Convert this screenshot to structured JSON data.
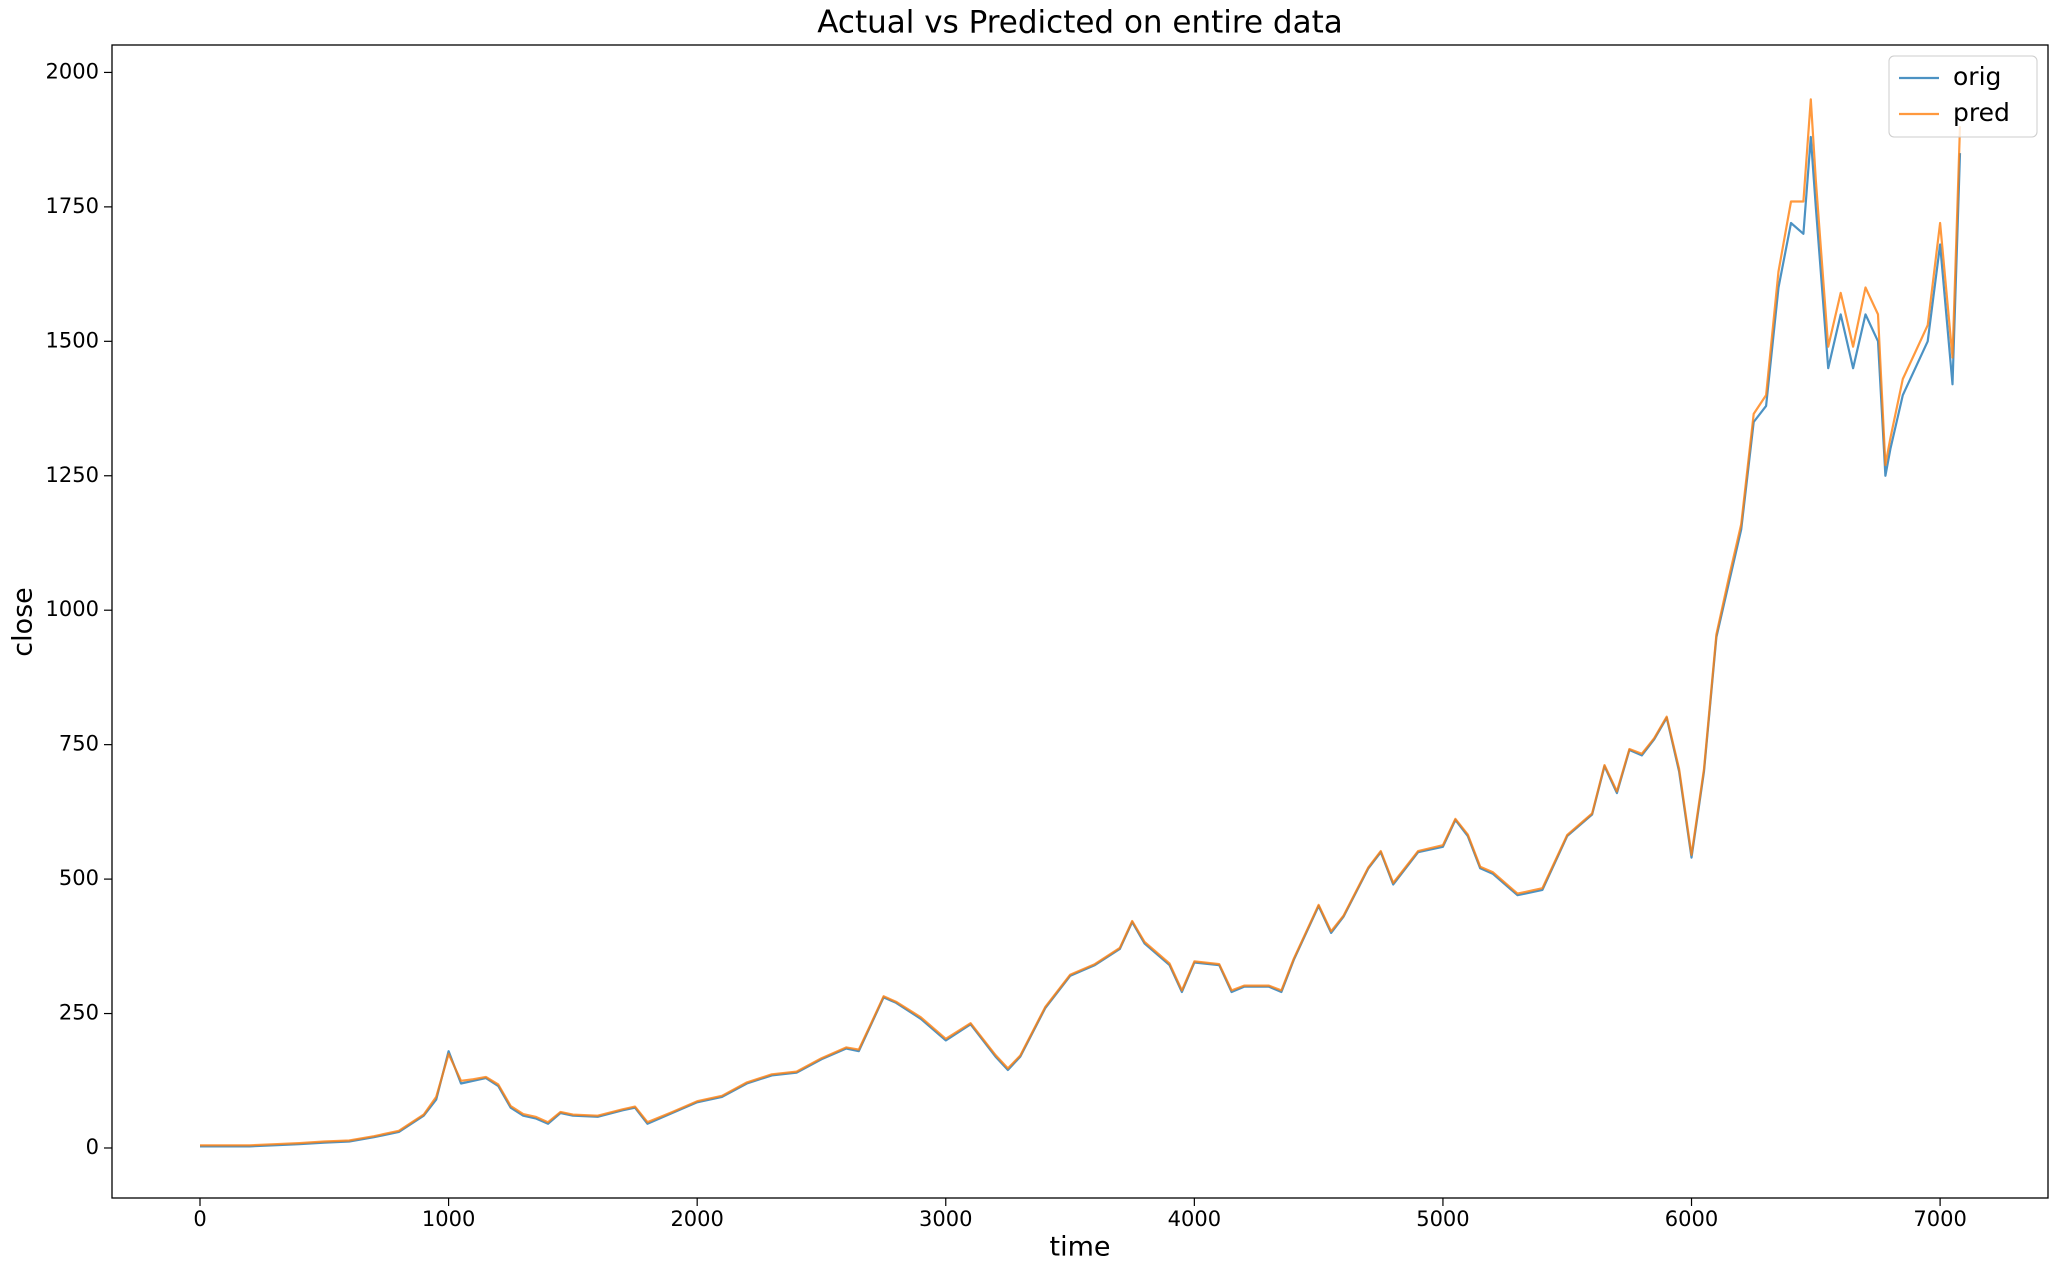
{
  "chart_data": {
    "type": "line",
    "title": "Actual vs Predicted on entire data",
    "x_label": "time",
    "y_label": "close",
    "x": [
      0,
      100,
      200,
      300,
      400,
      500,
      600,
      700,
      800,
      900,
      950,
      1000,
      1050,
      1100,
      1150,
      1200,
      1250,
      1300,
      1350,
      1400,
      1450,
      1500,
      1600,
      1700,
      1750,
      1800,
      1900,
      2000,
      2100,
      2200,
      2300,
      2400,
      2500,
      2600,
      2650,
      2700,
      2750,
      2800,
      2900,
      3000,
      3100,
      3200,
      3250,
      3300,
      3400,
      3500,
      3600,
      3700,
      3750,
      3800,
      3900,
      3950,
      4000,
      4100,
      4150,
      4200,
      4300,
      4350,
      4400,
      4450,
      4500,
      4550,
      4600,
      4700,
      4750,
      4800,
      4900,
      5000,
      5050,
      5100,
      5150,
      5200,
      5300,
      5400,
      5500,
      5600,
      5650,
      5700,
      5750,
      5800,
      5850,
      5900,
      5950,
      6000,
      6050,
      6100,
      6150,
      6200,
      6250,
      6300,
      6350,
      6400,
      6450,
      6480,
      6500,
      6550,
      6600,
      6650,
      6700,
      6750,
      6780,
      6800,
      6850,
      6900,
      6950,
      7000,
      7050,
      7080
    ],
    "series": [
      {
        "name": "orig",
        "color": "#1f77b4",
        "values": [
          3,
          3,
          3,
          5,
          7,
          10,
          12,
          20,
          30,
          60,
          90,
          180,
          120,
          125,
          130,
          115,
          75,
          60,
          55,
          45,
          65,
          60,
          58,
          70,
          75,
          45,
          65,
          85,
          95,
          120,
          135,
          140,
          165,
          185,
          180,
          230,
          280,
          270,
          240,
          200,
          230,
          170,
          145,
          170,
          260,
          320,
          340,
          370,
          420,
          380,
          340,
          290,
          345,
          340,
          290,
          300,
          300,
          290,
          350,
          400,
          450,
          400,
          430,
          520,
          550,
          490,
          550,
          560,
          610,
          580,
          520,
          510,
          470,
          480,
          580,
          620,
          710,
          660,
          740,
          730,
          760,
          800,
          700,
          540,
          700,
          950,
          1050,
          1150,
          1350,
          1380,
          1600,
          1720,
          1700,
          1880,
          1750,
          1450,
          1550,
          1450,
          1550,
          1500,
          1250,
          1300,
          1400,
          1450,
          1500,
          1680,
          1420,
          1850
        ]
      },
      {
        "name": "pred",
        "color": "#ff7f0e",
        "values": [
          5,
          5,
          5,
          7,
          9,
          12,
          14,
          22,
          32,
          62,
          95,
          175,
          125,
          128,
          132,
          118,
          78,
          63,
          58,
          48,
          67,
          62,
          60,
          72,
          77,
          48,
          67,
          87,
          97,
          122,
          137,
          142,
          167,
          187,
          183,
          232,
          282,
          272,
          243,
          203,
          232,
          173,
          148,
          172,
          262,
          322,
          342,
          372,
          422,
          383,
          343,
          293,
          347,
          342,
          293,
          302,
          302,
          293,
          352,
          402,
          452,
          403,
          432,
          522,
          552,
          493,
          552,
          563,
          612,
          583,
          523,
          513,
          473,
          483,
          582,
          622,
          712,
          663,
          742,
          733,
          762,
          802,
          705,
          545,
          705,
          955,
          1060,
          1160,
          1365,
          1400,
          1630,
          1760,
          1760,
          1950,
          1800,
          1490,
          1590,
          1490,
          1600,
          1550,
          1270,
          1320,
          1430,
          1480,
          1530,
          1720,
          1470,
          1900
        ]
      }
    ],
    "xlim": [
      -354,
      7434
    ],
    "ylim": [
      -93,
      2051
    ],
    "xticks": [
      0,
      1000,
      2000,
      3000,
      4000,
      5000,
      6000,
      7000
    ],
    "yticks": [
      0,
      250,
      500,
      750,
      1000,
      1250,
      1500,
      1750,
      2000
    ],
    "legend": "upper right",
    "grid": false
  }
}
